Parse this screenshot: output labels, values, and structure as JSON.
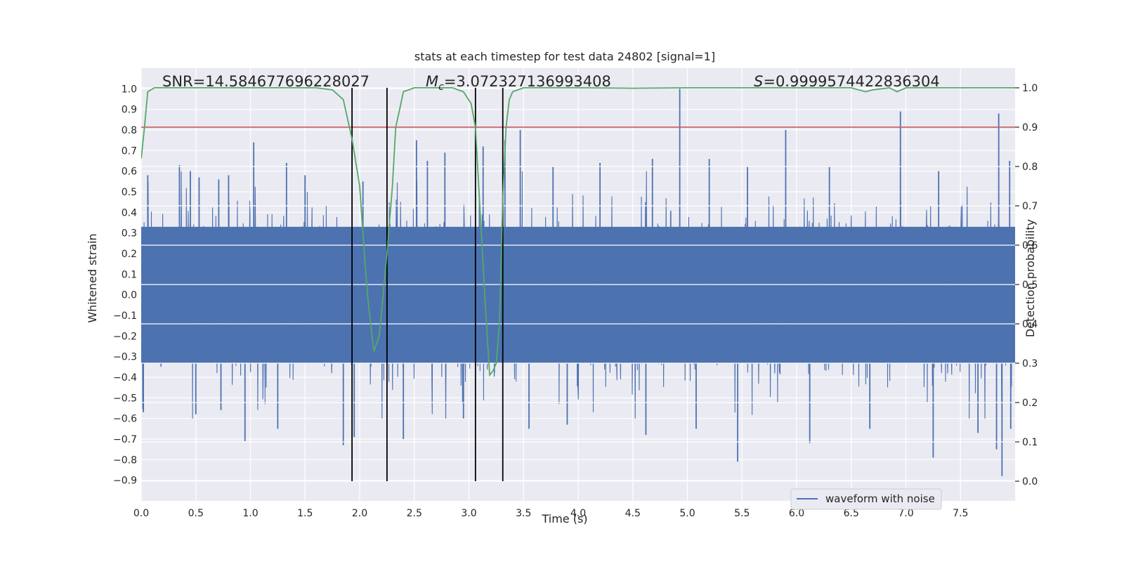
{
  "chart_data": {
    "type": "line",
    "title": "stats at each timestep for test data 24802 [signal=1]",
    "xlabel": "Time (s)",
    "ylabel_left": "Whitened strain",
    "ylabel_right": "Detection probability",
    "xlim": [
      0.0,
      8.0
    ],
    "ylim_left": [
      -1.0,
      1.1
    ],
    "ylim_right": [
      -0.05,
      1.05
    ],
    "grid": true,
    "legend": {
      "placement": "lower-right",
      "entries": [
        "waveform with noise"
      ]
    },
    "x_ticks": [
      "0.0",
      "0.5",
      "1.0",
      "1.5",
      "2.0",
      "2.5",
      "3.0",
      "3.5",
      "4.0",
      "4.5",
      "5.0",
      "5.5",
      "6.0",
      "6.5",
      "7.0",
      "7.5"
    ],
    "y_ticks_left": [
      "1.0",
      "0.9",
      "0.8",
      "0.7",
      "0.6",
      "0.5",
      "0.4",
      "0.3",
      "0.2",
      "0.1",
      "0.0",
      "−0.1",
      "−0.2",
      "−0.3",
      "−0.4",
      "−0.5",
      "−0.6",
      "−0.7",
      "−0.8",
      "−0.9"
    ],
    "y_ticks_right": [
      "1.0",
      "0.9",
      "0.8",
      "0.7",
      "0.6",
      "0.5",
      "0.4",
      "0.3",
      "0.2",
      "0.1",
      "0.0"
    ],
    "annotations": {
      "snr": "SNR=14.584677696228027",
      "mc_symbol": "M",
      "mc_sub": "c",
      "mc_value": "=3.072327136993408",
      "s_symbol": "S",
      "s_value": "=0.9999574422836304"
    },
    "series": [
      {
        "name": "waveform with noise",
        "kind": "noisy-strain",
        "color": "#4c72b0",
        "core_band": [
          -0.33,
          0.33
        ],
        "spike_peaks_up": [
          [
            0.06,
            0.58
          ],
          [
            0.35,
            0.63
          ],
          [
            0.45,
            0.6
          ],
          [
            0.53,
            0.57
          ],
          [
            0.71,
            0.56
          ],
          [
            0.8,
            0.58
          ],
          [
            1.03,
            0.74
          ],
          [
            1.33,
            0.64
          ],
          [
            1.5,
            0.58
          ],
          [
            2.03,
            0.55
          ],
          [
            2.52,
            0.75
          ],
          [
            2.62,
            0.65
          ],
          [
            2.78,
            0.69
          ],
          [
            3.13,
            0.72
          ],
          [
            3.33,
            0.75
          ],
          [
            3.47,
            0.8
          ],
          [
            3.77,
            0.62
          ],
          [
            4.2,
            0.64
          ],
          [
            4.68,
            0.66
          ],
          [
            4.93,
            1.0
          ],
          [
            5.2,
            0.66
          ],
          [
            5.55,
            0.62
          ],
          [
            5.9,
            0.8
          ],
          [
            6.3,
            0.62
          ],
          [
            6.95,
            0.89
          ],
          [
            7.3,
            0.6
          ],
          [
            7.85,
            0.88
          ],
          [
            7.95,
            0.65
          ]
        ],
        "spike_peaks_down": [
          [
            0.02,
            -0.57
          ],
          [
            0.5,
            -0.58
          ],
          [
            0.73,
            -0.56
          ],
          [
            0.95,
            -0.71
          ],
          [
            1.25,
            -0.65
          ],
          [
            1.85,
            -0.73
          ],
          [
            1.95,
            -0.69
          ],
          [
            2.4,
            -0.7
          ],
          [
            2.95,
            -0.6
          ],
          [
            3.55,
            -0.65
          ],
          [
            3.9,
            -0.63
          ],
          [
            4.62,
            -0.68
          ],
          [
            5.08,
            -0.65
          ],
          [
            5.46,
            -0.81
          ],
          [
            6.12,
            -0.72
          ],
          [
            6.67,
            -0.65
          ],
          [
            7.25,
            -0.79
          ],
          [
            7.66,
            -0.67
          ],
          [
            7.83,
            -0.75
          ],
          [
            7.88,
            -0.88
          ],
          [
            7.96,
            -0.65
          ]
        ]
      },
      {
        "name": "",
        "kind": "detection-probability",
        "axis": "right",
        "color": "#55a868",
        "x": [
          0.0,
          0.03,
          0.06,
          0.12,
          0.3,
          0.8,
          1.2,
          1.6,
          1.75,
          1.85,
          1.93,
          2.0,
          2.05,
          2.08,
          2.13,
          2.18,
          2.25,
          2.3,
          2.33,
          2.37,
          2.4,
          2.5,
          2.7,
          2.85,
          2.95,
          3.02,
          3.06,
          3.1,
          3.15,
          3.19,
          3.22,
          3.25,
          3.28,
          3.31,
          3.34,
          3.37,
          3.4,
          3.5,
          4.0,
          4.5,
          5.0,
          5.5,
          6.0,
          6.5,
          6.63,
          6.7,
          6.85,
          6.92,
          7.0,
          7.5,
          8.0
        ],
        "y": [
          0.82,
          0.9,
          0.99,
          1.0,
          1.0,
          1.0,
          1.0,
          1.0,
          0.995,
          0.97,
          0.87,
          0.75,
          0.55,
          0.45,
          0.33,
          0.37,
          0.58,
          0.75,
          0.9,
          0.95,
          0.99,
          1.0,
          1.0,
          1.0,
          0.99,
          0.96,
          0.9,
          0.7,
          0.45,
          0.27,
          0.28,
          0.3,
          0.4,
          0.72,
          0.9,
          0.97,
          0.99,
          1.0,
          1.0,
          0.999,
          1.0,
          1.0,
          1.0,
          1.0,
          0.99,
          0.995,
          1.0,
          0.99,
          1.0,
          1.0,
          1.0
        ]
      }
    ],
    "threshold": {
      "axis": "right",
      "value": 0.9,
      "color": "#c44e52"
    },
    "vlines": {
      "x": [
        1.93,
        2.25,
        3.06,
        3.31
      ],
      "color": "#000000",
      "range_right": [
        0.0,
        1.0
      ]
    }
  }
}
